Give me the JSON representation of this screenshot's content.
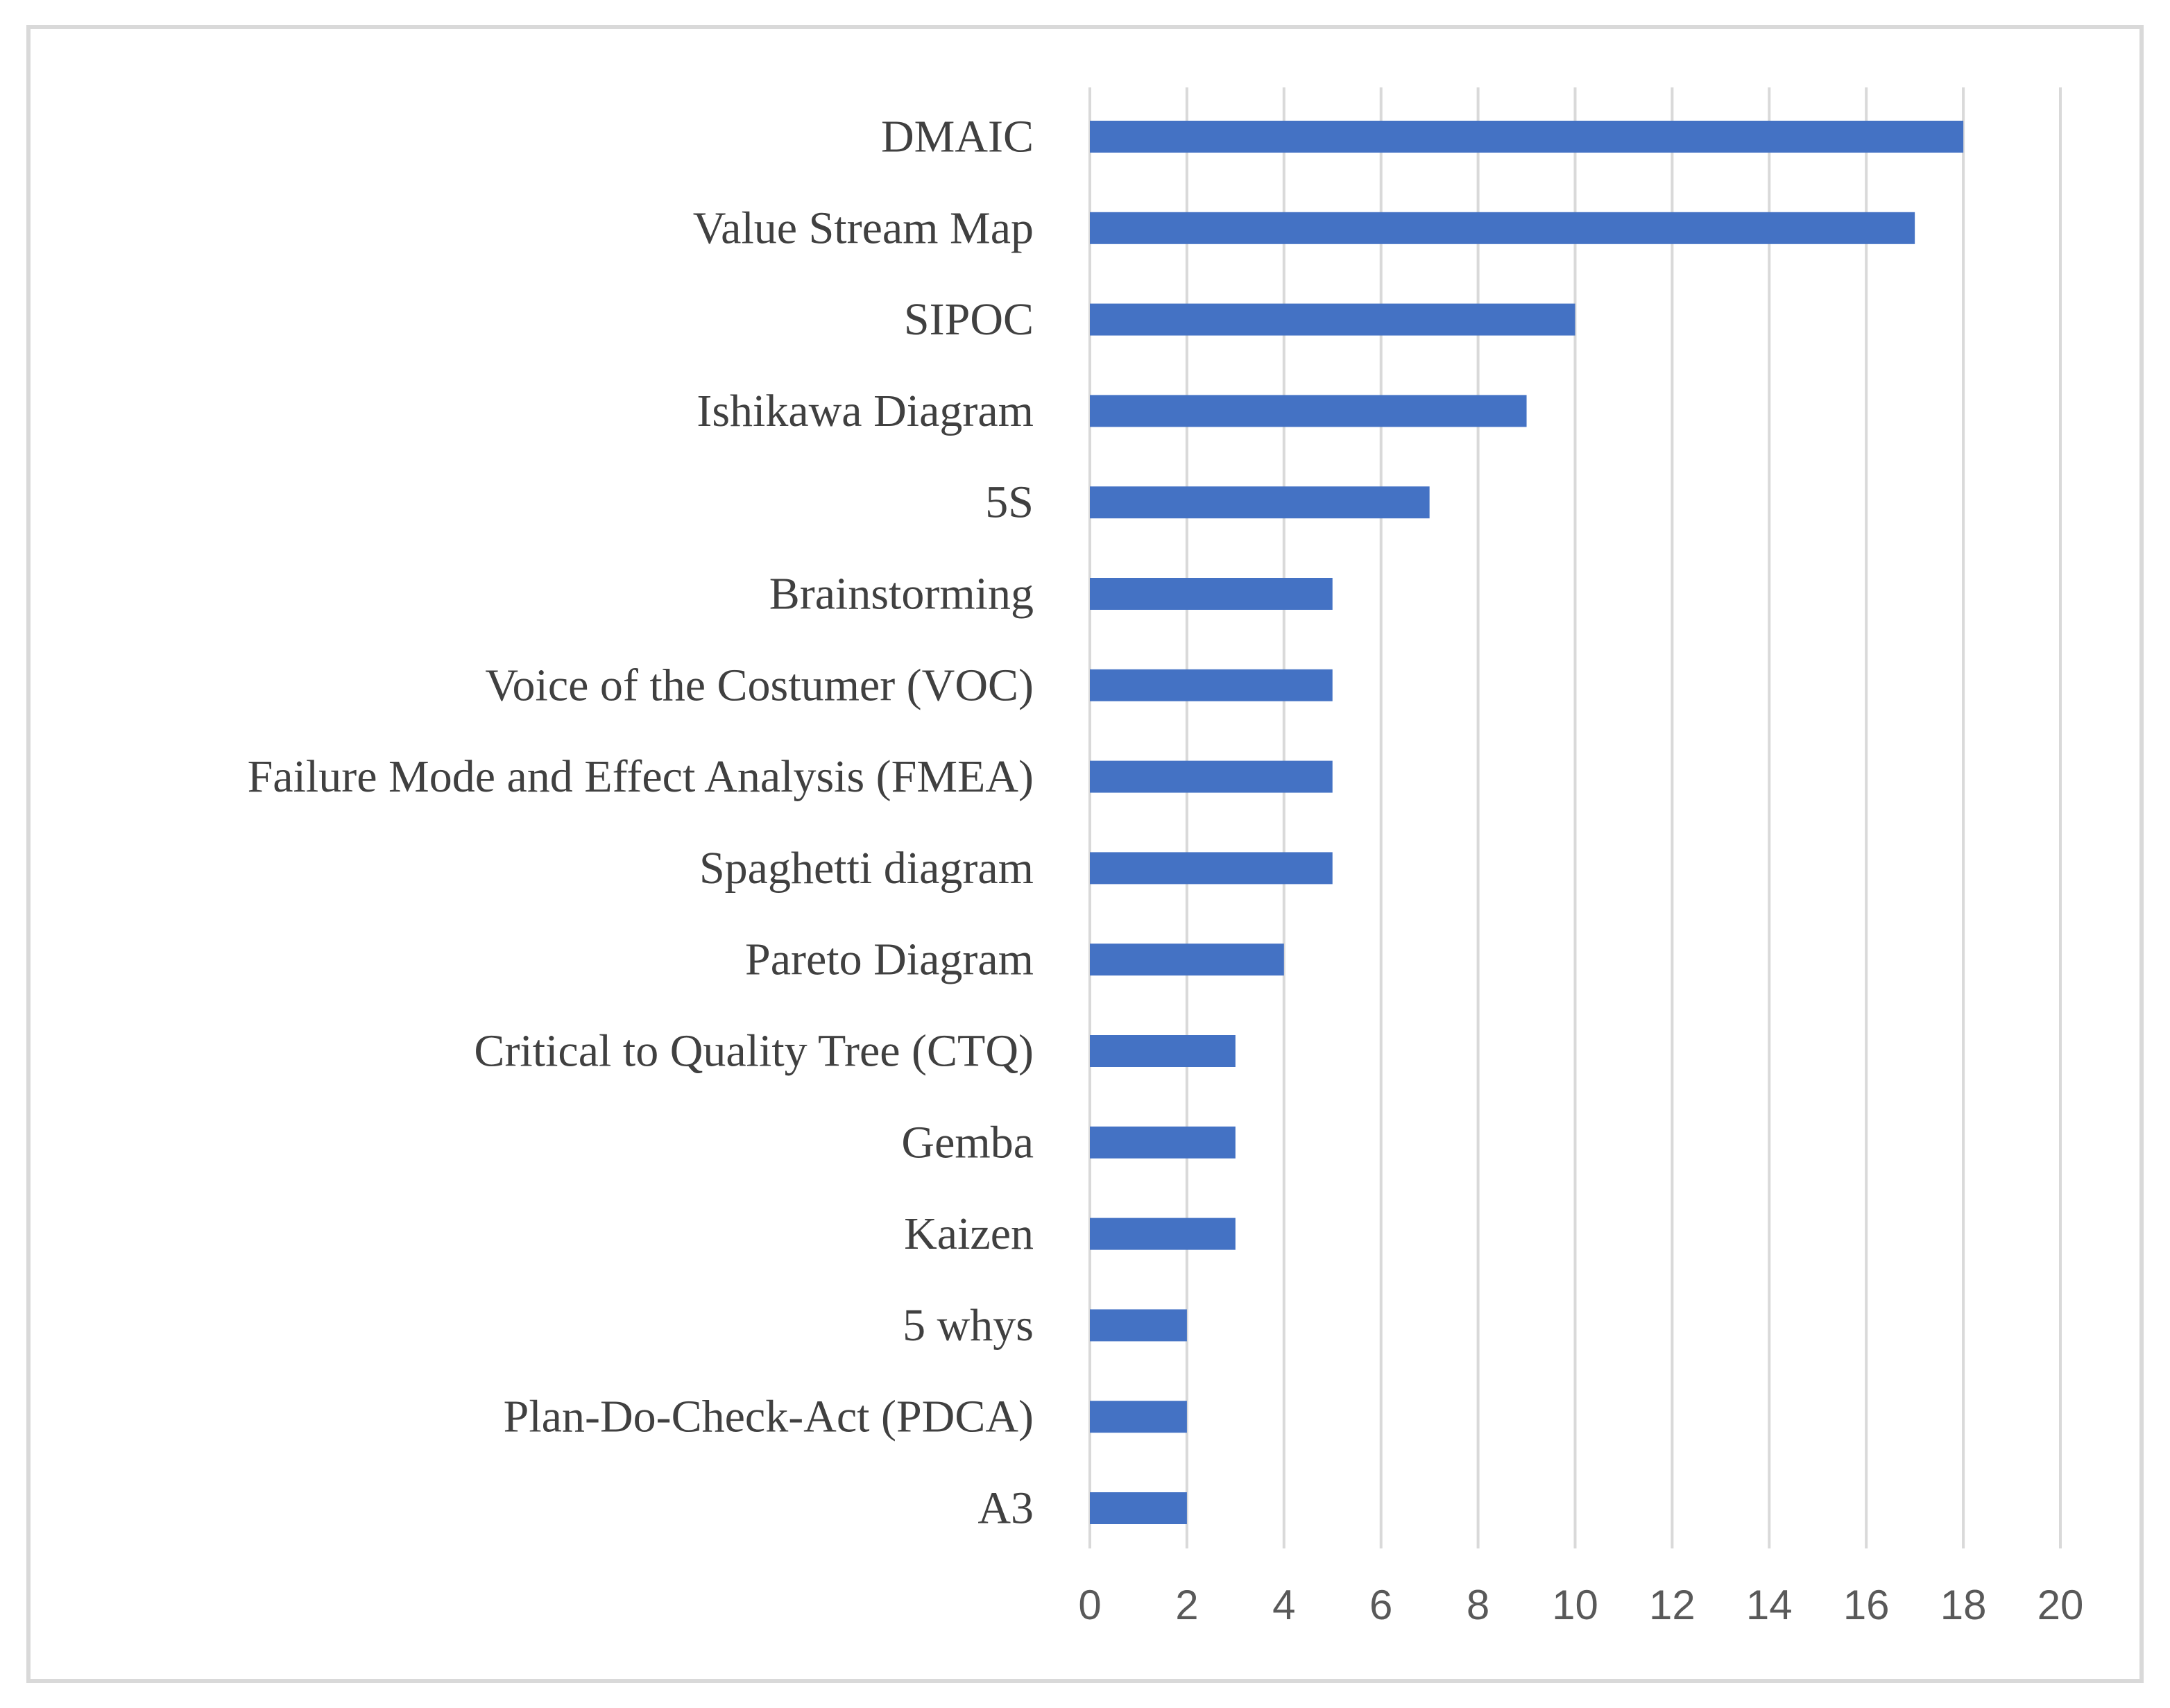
{
  "chart_data": {
    "type": "bar",
    "orientation": "horizontal",
    "title": "",
    "xlabel": "",
    "ylabel": "",
    "categories": [
      "DMAIC",
      "Value Stream Map",
      "SIPOC",
      "Ishikawa Diagram",
      "5S",
      "Brainstorming",
      "Voice of the Costumer (VOC)",
      "Failure Mode and Effect Analysis (FMEA)",
      "Spaghetti diagram",
      "Pareto Diagram",
      "Critical to Quality Tree (CTQ)",
      "Gemba",
      "Kaizen",
      "5 whys",
      "Plan-Do-Check-Act (PDCA)",
      "A3"
    ],
    "values": [
      18,
      17,
      10,
      9,
      7,
      5,
      5,
      5,
      5,
      4,
      3,
      3,
      3,
      2,
      2,
      2
    ],
    "xlim": [
      0,
      20
    ],
    "xticks": [
      "0",
      "2",
      "4",
      "6",
      "8",
      "10",
      "12",
      "14",
      "16",
      "18",
      "20"
    ],
    "grid": "vertical",
    "legend": "none",
    "bar_color": "#4472c4",
    "grid_color": "#d9d9d9"
  }
}
